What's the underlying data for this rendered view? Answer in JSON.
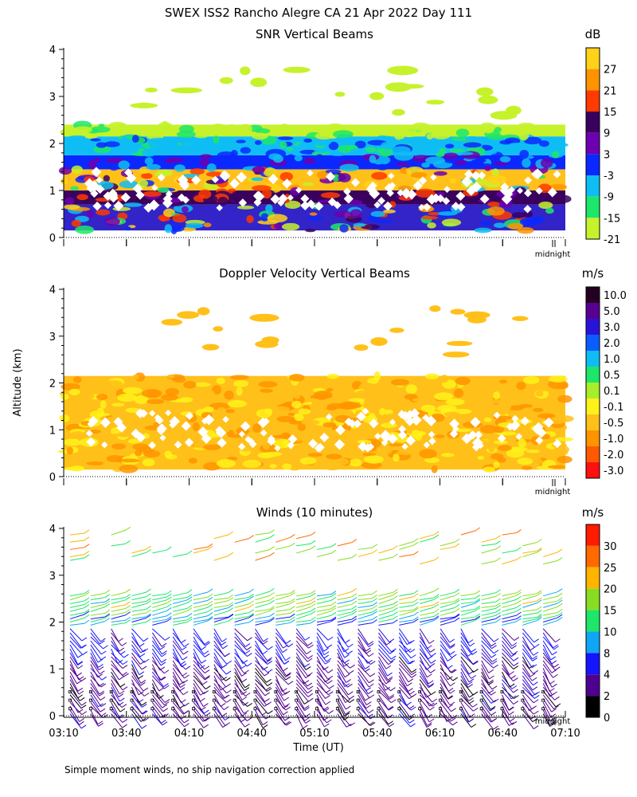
{
  "figure": {
    "title": "SWEX ISS2 Rancho Alegre CA  21 Apr 2022 Day 111",
    "shared_ylabel": "Altitude (km)",
    "xlabel": "Time (UT)",
    "footnote": "Simple moment winds, no ship navigation correction applied",
    "midnight_label": "midnight",
    "x_ticks": [
      "03:10",
      "03:40",
      "04:10",
      "04:40",
      "05:10",
      "05:40",
      "06:10",
      "06:40",
      "07:10"
    ]
  },
  "chart_data": [
    {
      "type": "heatmap",
      "title": "SNR Vertical Beams",
      "unit": "dB",
      "xlim": [
        "03:10",
        "07:10"
      ],
      "ylim": [
        0,
        4
      ],
      "y_ticks": [
        "0",
        "1",
        "2",
        "3",
        "4"
      ],
      "colorbar": {
        "labels": [
          "27",
          "21",
          "15",
          "9",
          "3",
          "-3",
          "-9",
          "-15",
          "-21"
        ],
        "colors": [
          "#ffd21a",
          "#ff9400",
          "#ff3a00",
          "#3a005e",
          "#6d00b0",
          "#0a28ff",
          "#0fbdf5",
          "#1ee66a",
          "#c6f22b"
        ]
      },
      "layers": [
        {
          "from_km": 0.15,
          "to_km": 0.7,
          "level": "3",
          "color": "#3224c8"
        },
        {
          "from_km": 0.7,
          "to_km": 1.0,
          "level": "9",
          "color": "#3a005e"
        },
        {
          "from_km": 1.0,
          "to_km": 1.45,
          "level": "27",
          "color": "#ffc01a"
        },
        {
          "from_km": 1.45,
          "to_km": 1.75,
          "level": "-3",
          "color": "#0a28ff"
        },
        {
          "from_km": 1.75,
          "to_km": 2.15,
          "level": "-9",
          "color": "#0fbdf5"
        },
        {
          "from_km": 2.15,
          "to_km": 2.4,
          "level": "-21",
          "color": "#c6f22b"
        }
      ]
    },
    {
      "type": "heatmap",
      "title": "Doppler Velocity Vertical Beams",
      "unit": "m/s",
      "xlim": [
        "03:10",
        "07:10"
      ],
      "ylim": [
        0,
        4
      ],
      "y_ticks": [
        "0",
        "1",
        "2",
        "3",
        "4"
      ],
      "colorbar": {
        "labels": [
          "10.0",
          "5.0",
          "3.0",
          "2.0",
          "1.0",
          "0.5",
          "0.1",
          "-0.1",
          "-0.5",
          "-1.0",
          "-2.0",
          "-3.0"
        ],
        "colors": [
          "#240020",
          "#5a0090",
          "#2814d8",
          "#0a5cff",
          "#0fbdf5",
          "#1ee66a",
          "#a8ee2a",
          "#fff21a",
          "#ffc01a",
          "#ff9400",
          "#ff5a00",
          "#ff1010"
        ]
      },
      "layers": [
        {
          "from_km": 0.15,
          "to_km": 2.15,
          "level": "-0.5",
          "color": "#ffc01a"
        }
      ]
    },
    {
      "type": "wind_barbs",
      "title": "Winds (10 minutes)",
      "unit": "m/s",
      "xlim": [
        "03:10",
        "07:10"
      ],
      "ylim": [
        0,
        4
      ],
      "y_ticks": [
        "0",
        "1",
        "2",
        "3",
        "4"
      ],
      "colorbar": {
        "labels": [
          "30",
          "25",
          "20",
          "15",
          "10",
          "8",
          "4",
          "2",
          "0"
        ],
        "colors": [
          "#ff1a00",
          "#ff6a00",
          "#ffb400",
          "#88dd22",
          "#1ee66a",
          "#0fa6f5",
          "#1414ff",
          "#500090",
          "#000000"
        ]
      },
      "speed_bands": [
        {
          "from_km": 0.0,
          "to_km": 1.3,
          "speed_ms": 3
        },
        {
          "from_km": 1.3,
          "to_km": 1.9,
          "speed_ms": 5
        },
        {
          "from_km": 1.9,
          "to_km": 2.1,
          "speed_ms": 9
        },
        {
          "from_km": 2.1,
          "to_km": 2.6,
          "speed_ms": 15
        },
        {
          "from_km": 3.2,
          "to_km": 3.9,
          "speed_ms": 20
        }
      ]
    }
  ]
}
